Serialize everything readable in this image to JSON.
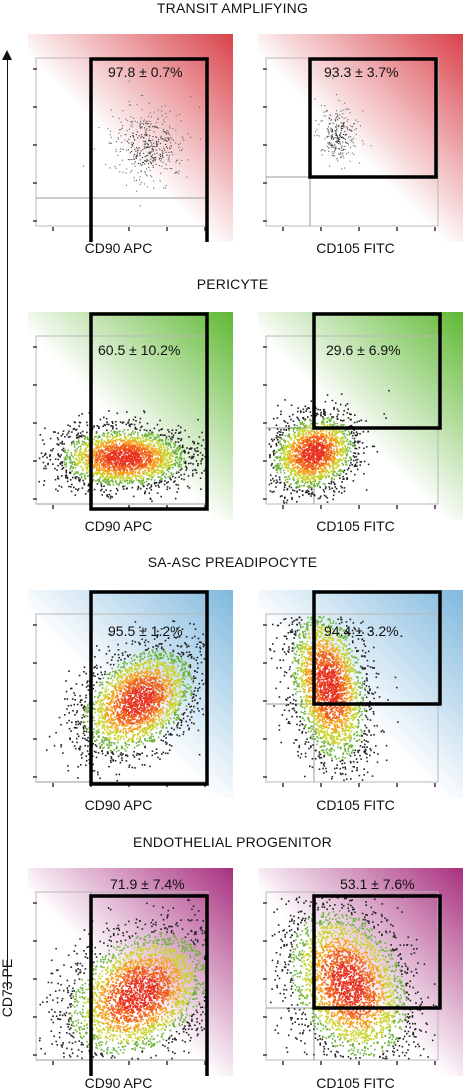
{
  "y_axis_label": "CD73 PE",
  "sections": [
    {
      "title": "TRANSIT AMPLIFYING",
      "color": "#d9424a",
      "density": "sparse",
      "panels": [
        {
          "x_label": "CD90 APC",
          "percent": "97.8 ± 0.7%"
        },
        {
          "x_label": "CD105 FITC",
          "percent": "93.3 ± 3.7%"
        }
      ]
    },
    {
      "title": "PERICYTE",
      "color": "#5fb833",
      "density": "medium",
      "panels": [
        {
          "x_label": "CD90 APC",
          "percent": "60.5 ± 10.2%"
        },
        {
          "x_label": "CD105 FITC",
          "percent": "29.6 ± 6.9%"
        }
      ]
    },
    {
      "title": "SA-ASC PREADIPOCYTE",
      "color": "#7fb8dd",
      "density": "dense",
      "panels": [
        {
          "x_label": "CD90 APC",
          "percent": "95.5 ± 1.2%"
        },
        {
          "x_label": "CD105 FITC",
          "percent": "94.4 ± 3.2%"
        }
      ]
    },
    {
      "title": "ENDOTHELIAL PROGENITOR",
      "color": "#a8307f",
      "density": "dense",
      "panels": [
        {
          "x_label": "CD90 APC",
          "percent": "71.9 ± 7.4%"
        },
        {
          "x_label": "CD105 FITC",
          "percent": "53.1 ± 7.6%"
        }
      ]
    }
  ],
  "chart_data": {
    "type": "scatter",
    "title": "",
    "ylabel": "CD73 PE",
    "groups": [
      "TRANSIT AMPLIFYING",
      "PERICYTE",
      "SA-ASC PREADIPOCYTE",
      "ENDOTHELIAL PROGENITOR"
    ],
    "markers": [
      "CD90 APC",
      "CD105 FITC"
    ],
    "series": [
      {
        "name": "CD90 APC",
        "values": [
          97.8,
          60.5,
          95.5,
          71.9
        ],
        "errors": [
          0.7,
          10.2,
          1.2,
          7.4
        ]
      },
      {
        "name": "CD105 FITC",
        "values": [
          93.3,
          29.6,
          94.4,
          53.1
        ],
        "errors": [
          3.7,
          6.9,
          3.2,
          7.6
        ]
      }
    ],
    "unit": "%"
  }
}
